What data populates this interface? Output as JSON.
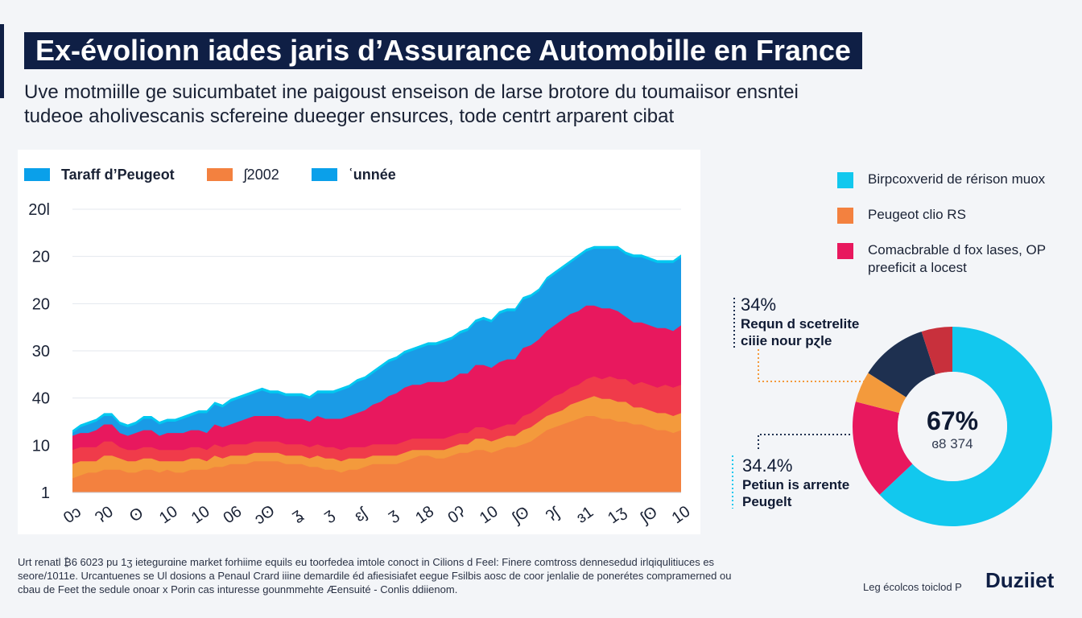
{
  "header": {
    "title": "Ex-évolionn iades jaris d’Assurance Automobille en France",
    "subtitle_lines": [
      "Uve motmiille ge suicumbatet ine paigoust enseison de larse brotore du toumaiisor ensntei",
      "tudeoe aholivescanis scfereine dueeger ensurces, tode centrt arparent cibat"
    ]
  },
  "colors": {
    "navy": "#0f1f45",
    "blue_light": "#00a8ec",
    "blue": "#1a9be6",
    "pink": "#e8185e",
    "red": "#f03b4a",
    "orange": "#f3813f",
    "cyan": "#12c8ee",
    "dark_navy": "#1e3050",
    "dark_red": "#c8303c",
    "mid_orange": "#f39a3c"
  },
  "legend_top": [
    {
      "label": "Taraff d’Peugeot",
      "color": "#0aa0ea",
      "bold": true
    },
    {
      "label": "ʃ2002",
      "color": "#f3813f",
      "bold": false
    },
    {
      "label": "ʿunnée",
      "color": "#0aa0ea",
      "bold": true
    }
  ],
  "legend_right": [
    {
      "label": "Birpcoxverid de rérison muox",
      "color": "#12c8ee"
    },
    {
      "label": "Peugeot clio RS",
      "color": "#f3813f"
    },
    {
      "label": "Comacbrable d fox lases, OP preeficit a locest",
      "color": "#e8185e"
    }
  ],
  "chart_data": [
    {
      "type": "area",
      "title": "",
      "xlabel": "",
      "ylabel": "",
      "stacked": true,
      "grid": true,
      "ytick_labels": [
        "1",
        "10",
        "40",
        "30",
        "20",
        "20",
        "20l"
      ],
      "xtick_labels": [
        "0ɔ",
        "ʔ0",
        "ʘ",
        "10",
        "10",
        "06",
        "ɔʘ",
        "ʓ",
        "ʒ",
        "ɛʃ",
        "ʒ",
        "18",
        "0ʔ",
        "10",
        "ʃʘ",
        "ʔʃ",
        "ɜ1",
        "1ʒ",
        "ʃʘ",
        "10"
      ],
      "x": [
        0,
        1,
        2,
        3,
        4,
        5,
        6,
        7,
        8,
        9,
        10,
        11,
        12,
        13,
        14,
        15,
        16,
        17,
        18,
        19,
        20,
        21,
        22,
        23,
        24,
        25,
        26,
        27,
        28,
        29,
        30,
        31,
        32,
        33,
        34,
        35,
        36,
        37,
        38,
        39,
        40,
        41,
        42,
        43,
        44,
        45,
        46,
        47,
        48,
        49,
        50,
        51,
        52,
        53,
        54,
        55,
        56,
        57,
        58,
        59,
        60,
        61,
        62,
        63,
        64,
        65,
        66,
        67,
        68,
        69,
        70,
        71,
        72,
        73,
        74,
        75,
        76,
        77
      ],
      "ylim": [
        0,
        100
      ],
      "series": [
        {
          "color": "#f3813f",
          "values": [
            5,
            6,
            7,
            7,
            8,
            8,
            8,
            7,
            7,
            8,
            8,
            7,
            8,
            7,
            7,
            8,
            8,
            8,
            9,
            9,
            10,
            10,
            10,
            11,
            11,
            11,
            11,
            10,
            10,
            10,
            9,
            9,
            8,
            8,
            7,
            8,
            8,
            9,
            10,
            10,
            10,
            10,
            11,
            12,
            13,
            13,
            12,
            12,
            13,
            14,
            14,
            15,
            15,
            14,
            15,
            16,
            16,
            17,
            18,
            20,
            22,
            23,
            24,
            25,
            26,
            27,
            27,
            26,
            26,
            25,
            25,
            24,
            24,
            23,
            22,
            22,
            21,
            22
          ]
        },
        {
          "color": "#f39a3c",
          "values": [
            5,
            5,
            4,
            4,
            5,
            5,
            4,
            4,
            4,
            4,
            4,
            4,
            3,
            4,
            4,
            4,
            4,
            3,
            4,
            3,
            3,
            3,
            3,
            3,
            3,
            3,
            3,
            3,
            3,
            3,
            3,
            4,
            4,
            4,
            4,
            4,
            4,
            3,
            3,
            3,
            3,
            3,
            3,
            3,
            2,
            2,
            3,
            3,
            3,
            3,
            3,
            4,
            4,
            4,
            4,
            4,
            4,
            5,
            5,
            5,
            5,
            5,
            5,
            6,
            6,
            6,
            7,
            7,
            7,
            7,
            7,
            6,
            6,
            6,
            6,
            6,
            6,
            6
          ]
        },
        {
          "color": "#f03b4a",
          "values": [
            5,
            5,
            5,
            5,
            5,
            5,
            4,
            4,
            4,
            4,
            4,
            4,
            4,
            4,
            4,
            4,
            4,
            4,
            4,
            4,
            4,
            4,
            4,
            4,
            4,
            4,
            4,
            4,
            4,
            4,
            4,
            4,
            4,
            4,
            4,
            4,
            4,
            4,
            4,
            4,
            4,
            4,
            4,
            4,
            4,
            4,
            4,
            4,
            4,
            4,
            4,
            4,
            4,
            4,
            4,
            4,
            4,
            5,
            5,
            5,
            5,
            6,
            6,
            6,
            6,
            7,
            7,
            7,
            8,
            8,
            8,
            8,
            9,
            9,
            9,
            10,
            10,
            10
          ]
        },
        {
          "color": "#e8185e",
          "values": [
            5,
            5,
            5,
            6,
            6,
            6,
            5,
            5,
            6,
            6,
            6,
            5,
            6,
            6,
            6,
            6,
            6,
            6,
            7,
            7,
            7,
            8,
            9,
            9,
            9,
            9,
            9,
            9,
            9,
            9,
            9,
            10,
            10,
            10,
            11,
            11,
            12,
            13,
            14,
            15,
            17,
            18,
            19,
            19,
            19,
            20,
            20,
            20,
            20,
            21,
            21,
            22,
            22,
            22,
            23,
            23,
            23,
            24,
            24,
            24,
            25,
            25,
            26,
            26,
            26,
            26,
            25,
            25,
            24,
            24,
            22,
            22,
            21,
            21,
            21,
            20,
            20,
            21
          ]
        },
        {
          "color": "#1a9be6",
          "values": [
            1,
            2,
            3,
            3,
            3,
            3,
            3,
            3,
            3,
            4,
            4,
            4,
            4,
            4,
            5,
            5,
            6,
            7,
            7,
            7,
            8,
            8,
            8,
            8,
            9,
            8,
            8,
            8,
            8,
            8,
            8,
            8,
            9,
            9,
            10,
            10,
            11,
            11,
            11,
            12,
            12,
            12,
            12,
            12,
            13,
            13,
            13,
            14,
            14,
            14,
            15,
            15,
            16,
            16,
            17,
            17,
            17,
            17,
            17,
            17,
            18,
            18,
            18,
            18,
            19,
            19,
            20,
            21,
            21,
            22,
            22,
            23,
            23,
            23,
            23,
            23,
            24,
            24
          ]
        },
        {
          "color": "#00c8f0",
          "values": [
            1,
            1,
            1,
            1,
            1,
            1,
            1,
            1,
            1,
            1,
            1,
            1,
            1,
            1,
            1,
            1,
            1,
            1,
            1,
            1,
            1,
            1,
            1,
            1,
            1,
            1,
            1,
            1,
            1,
            1,
            1,
            1,
            1,
            1,
            1,
            1,
            1,
            1,
            1,
            1,
            1,
            1,
            1,
            1,
            1,
            1,
            1,
            1,
            1,
            1,
            1,
            1,
            1,
            1,
            1,
            1,
            1,
            1,
            1,
            1,
            1,
            1,
            1,
            1,
            1,
            1,
            1,
            1,
            1,
            1,
            1,
            1,
            1,
            1,
            1,
            1,
            1,
            1
          ]
        }
      ]
    },
    {
      "type": "pie",
      "title": "",
      "center_value": "67%",
      "center_sub": "ɞ8 374",
      "slices": [
        {
          "value": 63,
          "color": "#12c8ee"
        },
        {
          "value": 16,
          "color": "#e8185e"
        },
        {
          "value": 5,
          "color": "#f39a3c"
        },
        {
          "value": 11,
          "color": "#1e3050"
        },
        {
          "value": 5,
          "color": "#c8303c"
        }
      ]
    }
  ],
  "annotations": [
    {
      "pct": "34%",
      "text": "Requn d scetrelite ciiie nour pɀle"
    },
    {
      "pct": "34.4%",
      "text": "Petiun is arrente Peugelt"
    }
  ],
  "footnote": {
    "lines": [
      "Urt renatl ₿6 6023 pu 1ʒ ietegurɑine market forhiime equils eu toorfedea imtole conoct in Cilions d Feel: Finere comtross dennesedud irlqiqulitiuces es",
      "seore/1011e. Urcantuenes se Ul dosions a Penaul Crard iiine demardile éd afiesisiafet eegue Fsilbis aosc de coor jenlalie de ponerétes compramerned ou",
      "cbau de Feet the sedule onoar x Porin cas inturesse gounmmehte Æensuité - Conlis ddiienom."
    ]
  },
  "credit": "Leg écolcos toiclod P",
  "brand": "Duziiet"
}
